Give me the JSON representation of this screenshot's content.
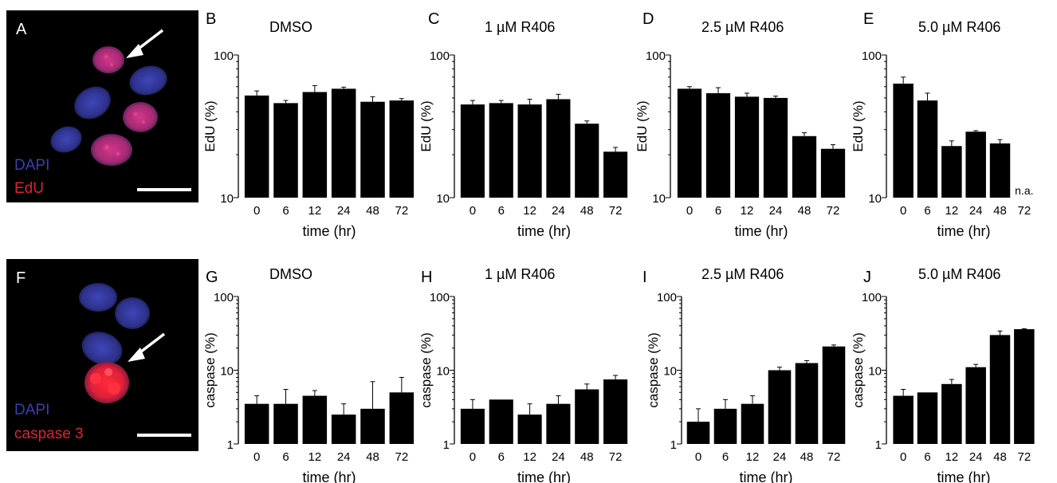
{
  "colors": {
    "bar": "#000000",
    "nucleus_blue": "#3a3fae",
    "stain_red": "#e0203a",
    "edu_magenta": "#c0307a"
  },
  "panels_micro": [
    {
      "letter": "A",
      "legend": [
        "DAPI",
        "EdU"
      ]
    },
    {
      "letter": "F",
      "legend": [
        "DAPI",
        "caspase 3"
      ]
    }
  ],
  "chart_data": [
    {
      "type": "bar",
      "panel": "B",
      "title": "DMSO",
      "xlabel": "time (hr)",
      "ylabel": "EdU (%)",
      "yscale": "log",
      "ylim": [
        10,
        100
      ],
      "yticks": [
        "10",
        "100"
      ],
      "categories": [
        "0",
        "6",
        "12",
        "24",
        "48",
        "72"
      ],
      "values": [
        52,
        46,
        55,
        58,
        47,
        48
      ],
      "errors": [
        4,
        2,
        6,
        1.5,
        4,
        1.5
      ]
    },
    {
      "type": "bar",
      "panel": "C",
      "title": "1 µM R406",
      "xlabel": "time (hr)",
      "ylabel": "EdU (%)",
      "yscale": "log",
      "ylim": [
        10,
        100
      ],
      "yticks": [
        "10",
        "100"
      ],
      "categories": [
        "0",
        "6",
        "12",
        "24",
        "48",
        "72"
      ],
      "values": [
        45,
        46,
        45,
        49,
        33,
        21
      ],
      "errors": [
        3,
        2,
        4,
        4,
        1.5,
        1.5
      ]
    },
    {
      "type": "bar",
      "panel": "D",
      "title": "2.5 µM R406",
      "xlabel": "time (hr)",
      "ylabel": "EdU (%)",
      "yscale": "log",
      "ylim": [
        10,
        100
      ],
      "yticks": [
        "10",
        "100"
      ],
      "categories": [
        "0",
        "6",
        "12",
        "24",
        "48",
        "72"
      ],
      "values": [
        58,
        54,
        51,
        50,
        27,
        22
      ],
      "errors": [
        2,
        5,
        3,
        1.5,
        1.5,
        1.5
      ]
    },
    {
      "type": "bar",
      "panel": "E",
      "title": "5.0 µM R406",
      "xlabel": "time (hr)",
      "ylabel": "EdU (%)",
      "yscale": "log",
      "ylim": [
        10,
        100
      ],
      "yticks": [
        "10",
        "100"
      ],
      "categories": [
        "0",
        "6",
        "12",
        "24",
        "48",
        "72"
      ],
      "values": [
        63,
        48,
        23,
        29,
        24,
        null
      ],
      "errors": [
        7,
        6,
        2,
        0.5,
        1.5,
        null
      ],
      "annotation": "n.a."
    },
    {
      "type": "bar",
      "panel": "G",
      "title": "DMSO",
      "xlabel": "time (hr)",
      "ylabel": "caspase (%)",
      "yscale": "log",
      "ylim": [
        1,
        100
      ],
      "yticks": [
        "1",
        "10",
        "100"
      ],
      "categories": [
        "0",
        "6",
        "12",
        "24",
        "48",
        "72"
      ],
      "values": [
        3.5,
        3.5,
        4.5,
        2.5,
        3.0,
        5.0
      ],
      "errors": [
        1.0,
        2.0,
        0.8,
        1.0,
        4.0,
        3.0
      ]
    },
    {
      "type": "bar",
      "panel": "H",
      "title": "1 µM R406",
      "xlabel": "time (hr)",
      "ylabel": "caspase (%)",
      "yscale": "log",
      "ylim": [
        1,
        100
      ],
      "yticks": [
        "1",
        "10",
        "100"
      ],
      "categories": [
        "0",
        "6",
        "12",
        "24",
        "48",
        "72"
      ],
      "values": [
        3.0,
        4.0,
        2.5,
        3.5,
        5.5,
        7.5
      ],
      "errors": [
        1.0,
        0.1,
        1.0,
        1.0,
        1.0,
        1.0
      ]
    },
    {
      "type": "bar",
      "panel": "I",
      "title": "2.5 µM R406",
      "xlabel": "time (hr)",
      "ylabel": "caspase (%)",
      "yscale": "log",
      "ylim": [
        1,
        100
      ],
      "yticks": [
        "1",
        "10",
        "100"
      ],
      "categories": [
        "0",
        "6",
        "12",
        "24",
        "48",
        "72"
      ],
      "values": [
        2.0,
        3.0,
        3.5,
        10,
        12.5,
        21
      ],
      "errors": [
        1.0,
        1.0,
        1.0,
        1.0,
        1.0,
        1.0
      ]
    },
    {
      "type": "bar",
      "panel": "J",
      "title": "5.0 µM R406",
      "xlabel": "time (hr)",
      "ylabel": "caspase (%)",
      "yscale": "log",
      "ylim": [
        1,
        100
      ],
      "yticks": [
        "1",
        "10",
        "100"
      ],
      "categories": [
        "0",
        "6",
        "12",
        "24",
        "48",
        "72"
      ],
      "values": [
        4.5,
        5.0,
        6.5,
        11,
        30,
        36
      ],
      "errors": [
        1.0,
        0.1,
        1.0,
        1.0,
        4.0,
        0.5
      ]
    }
  ]
}
